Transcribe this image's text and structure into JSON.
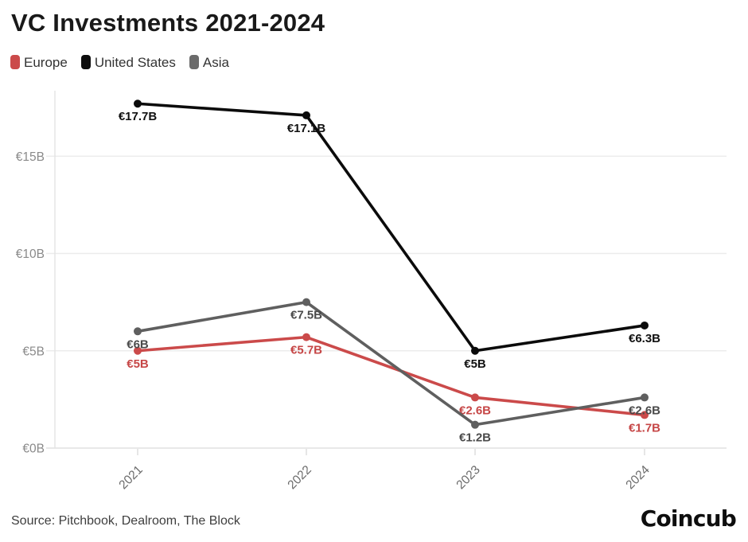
{
  "header": {
    "title": "VC Investments 2021-2024"
  },
  "legend": {
    "items": [
      {
        "label": "Europe",
        "color": "#cb4a4a"
      },
      {
        "label": "United States",
        "color": "#0d0d0d"
      },
      {
        "label": "Asia",
        "color": "#6b6b6b"
      }
    ]
  },
  "footer": {
    "source": "Source: Pitchbook, Dealroom, The Block",
    "brand": "Coincub"
  },
  "chart_data": {
    "type": "line",
    "title": "VC Investments 2021-2024",
    "categories": [
      "2021",
      "2022",
      "2023",
      "2024"
    ],
    "series": [
      {
        "name": "Europe",
        "color": "#cb4a4a",
        "label_color": "#c64646",
        "values": [
          5,
          5.7,
          2.6,
          1.7
        ],
        "point_labels": [
          "€5B",
          "€5.7B",
          "€2.6B",
          "€1.7B"
        ]
      },
      {
        "name": "United States",
        "color": "#0b0b0b",
        "label_color": "#111111",
        "values": [
          17.7,
          17.1,
          5,
          6.3
        ],
        "point_labels": [
          "€17.7B",
          "€17.1B",
          "€5B",
          "€6.3B"
        ]
      },
      {
        "name": "Asia",
        "color": "#5f5f5f",
        "label_color": "#4a4a4a",
        "values": [
          6,
          7.5,
          1.2,
          2.6
        ],
        "point_labels": [
          "€6B",
          "€7.5B",
          "€1.2B",
          "€2.6B"
        ]
      }
    ],
    "draw_order": [
      "Europe",
      "United States",
      "Asia"
    ],
    "yticks": [
      {
        "value": 0,
        "label": "€0B"
      },
      {
        "value": 5,
        "label": "€5B"
      },
      {
        "value": 10,
        "label": "€10B"
      },
      {
        "value": 15,
        "label": "€15B"
      }
    ],
    "ylim": [
      0,
      18.4
    ],
    "grid": true,
    "legend_position": "top-left",
    "grid_color": "#ececec",
    "zero_line_color": "#e0e0e0",
    "axis_line_color": "#e3e3e3",
    "tick_mark_color": "#d9d9d9",
    "y_tick_label_color": "#8a8a8a",
    "x_tick_label_color": "#6a6a6a"
  }
}
